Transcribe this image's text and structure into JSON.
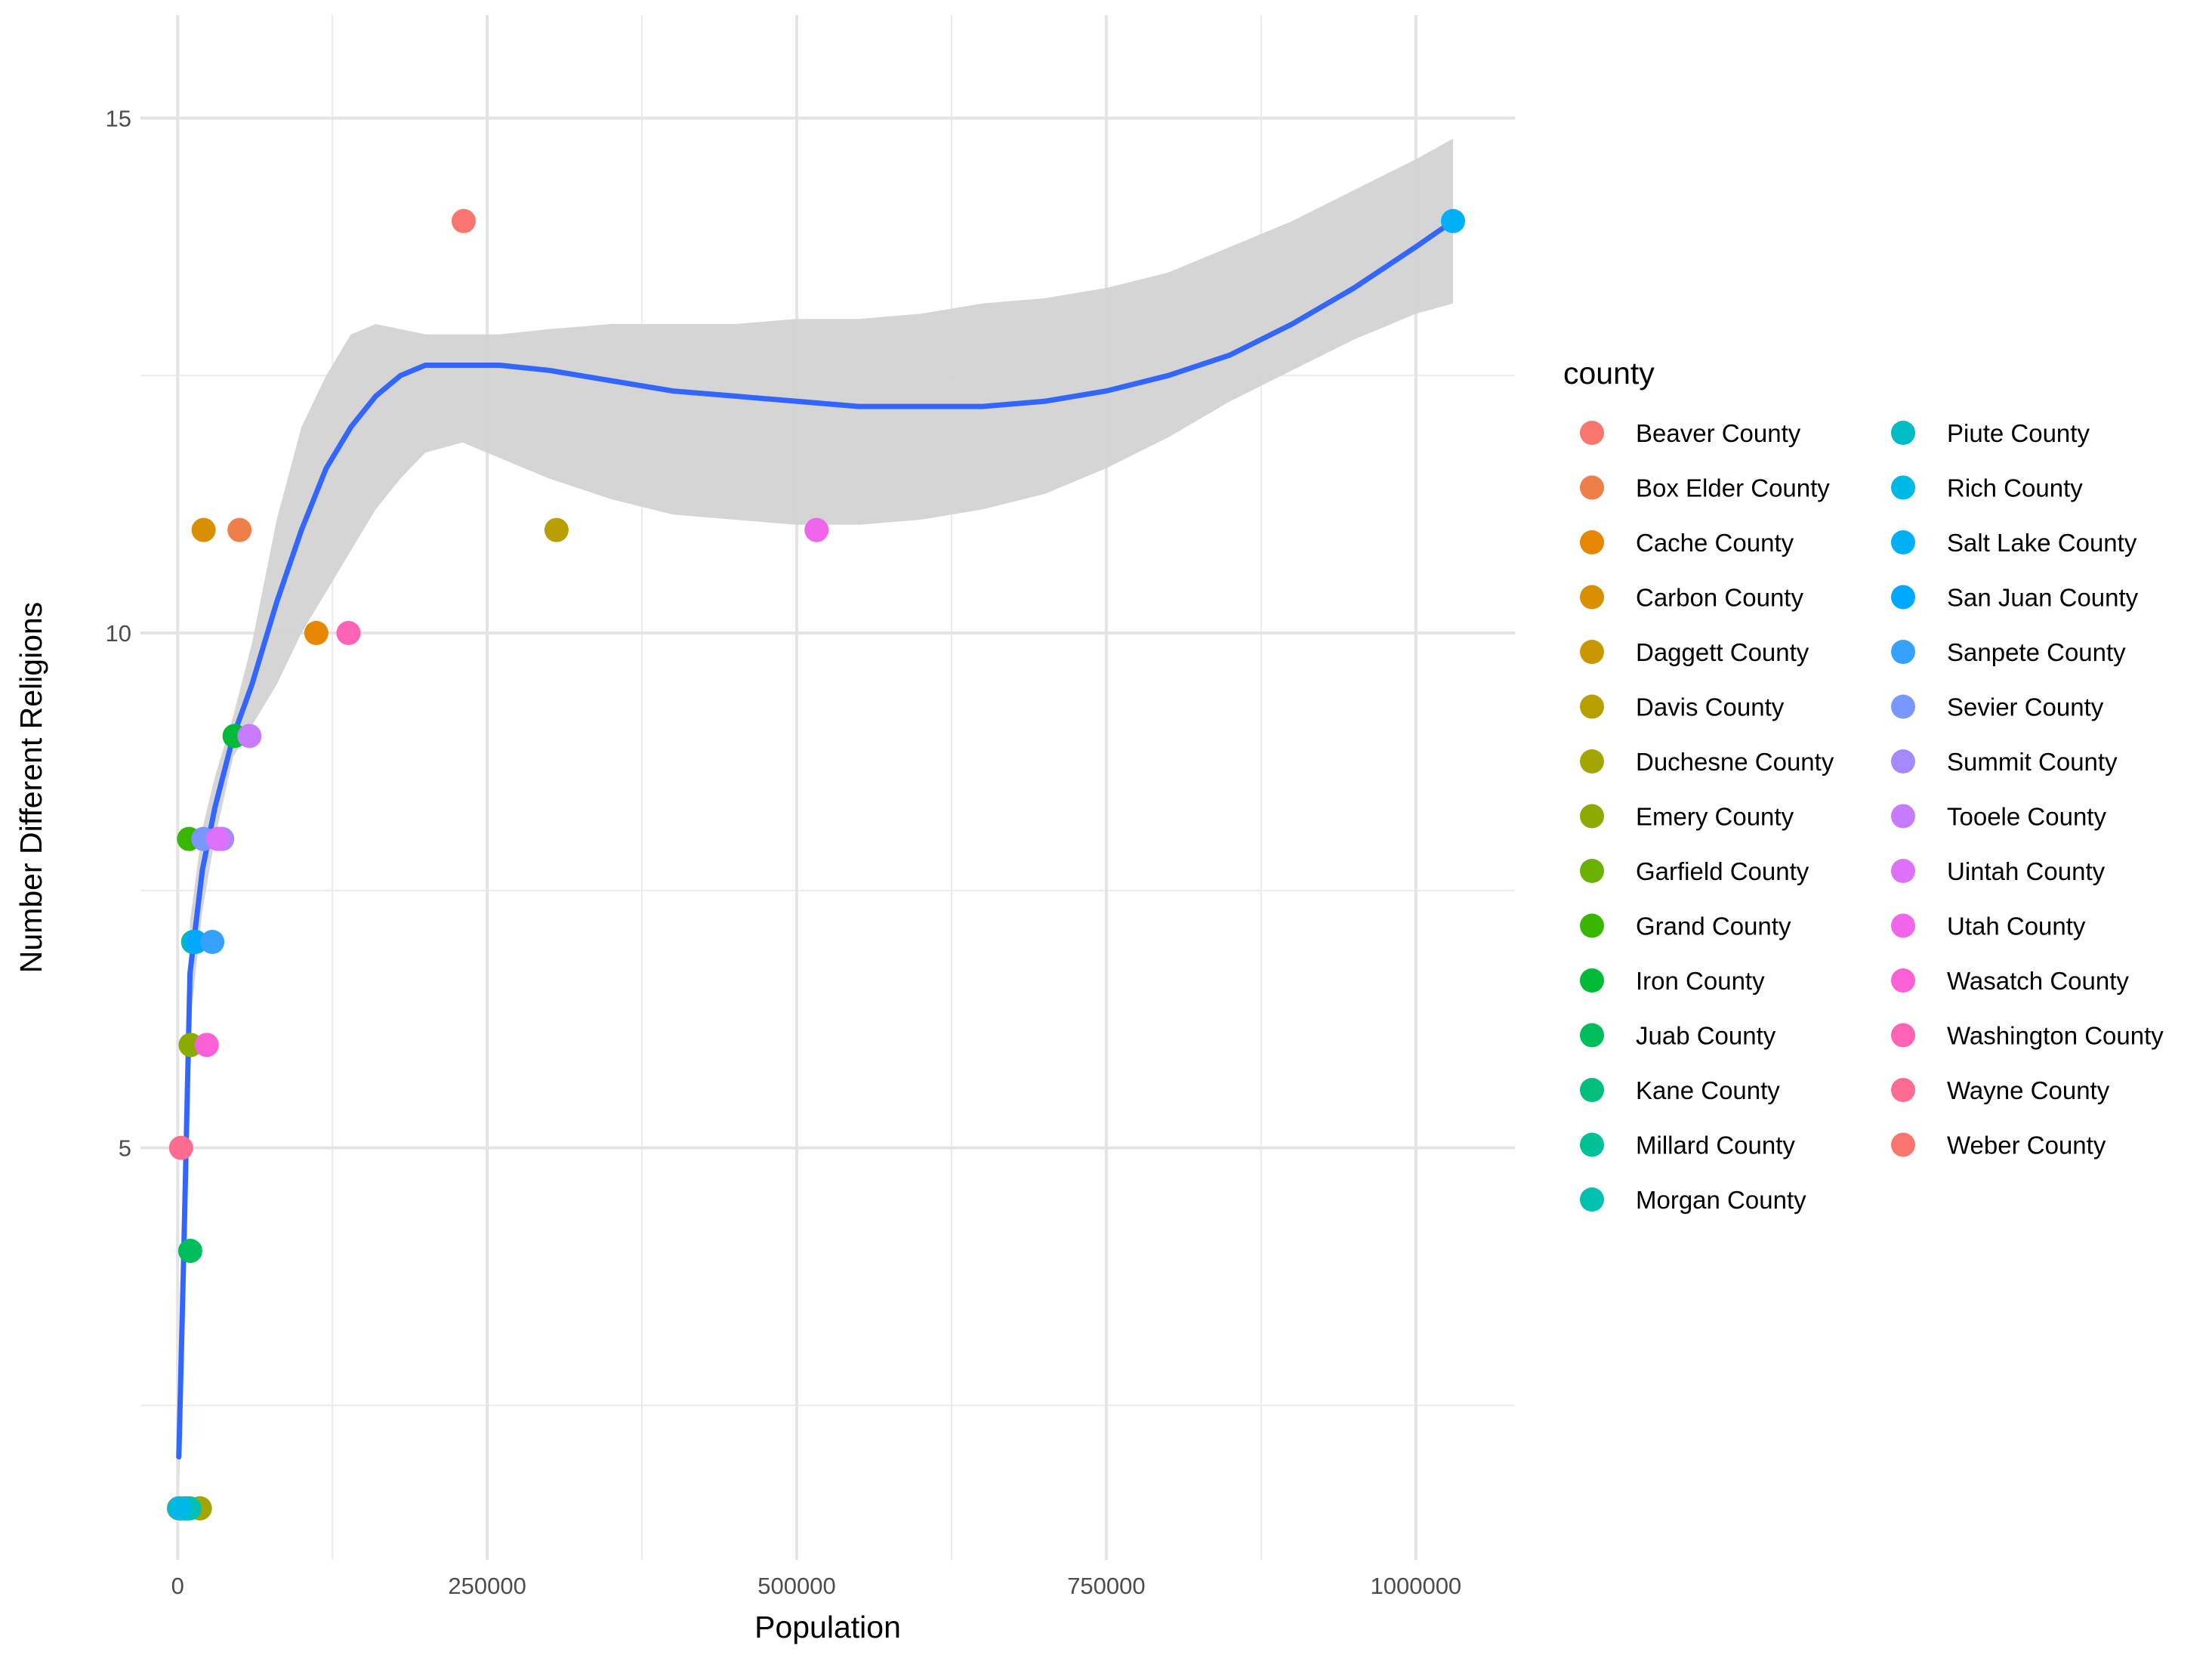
{
  "chart_data": {
    "type": "scatter",
    "title": "",
    "xlabel": "Population",
    "ylabel": "Number Different Religions",
    "xlim": [
      -30000,
      1080000
    ],
    "ylim": [
      1,
      16
    ],
    "xticks": [
      0,
      250000,
      500000,
      750000,
      1000000
    ],
    "xtick_labels": [
      "0",
      "250000",
      "500000",
      "750000",
      "1000000"
    ],
    "yticks": [
      5,
      10,
      15
    ],
    "ytick_labels": [
      "5",
      "10",
      "15"
    ],
    "grid": true,
    "legend": {
      "title": "county",
      "position": "right",
      "columns": 2
    },
    "series": [
      {
        "name": "Beaver County",
        "color": "#F8766D",
        "points": [
          [
            6600,
            1.5
          ]
        ]
      },
      {
        "name": "Box Elder County",
        "color": "#EF7F49",
        "points": [
          [
            50000,
            11
          ]
        ]
      },
      {
        "name": "Cache County",
        "color": "#E58700",
        "points": [
          [
            112000,
            10
          ]
        ]
      },
      {
        "name": "Carbon County",
        "color": "#D89000",
        "points": [
          [
            21000,
            11
          ]
        ]
      },
      {
        "name": "Daggett County",
        "color": "#C99800",
        "points": [
          [
            1000,
            1.5
          ]
        ]
      },
      {
        "name": "Davis County",
        "color": "#B79F00",
        "points": [
          [
            306000,
            11
          ]
        ]
      },
      {
        "name": "Duchesne County",
        "color": "#A3A500",
        "points": [
          [
            18000,
            1.5
          ]
        ]
      },
      {
        "name": "Emery County",
        "color": "#8BAB00",
        "points": [
          [
            10500,
            6
          ]
        ]
      },
      {
        "name": "Garfield County",
        "color": "#6BB100",
        "points": [
          [
            5100,
            1.5
          ]
        ]
      },
      {
        "name": "Grand County",
        "color": "#39B600",
        "points": [
          [
            9200,
            8
          ]
        ]
      },
      {
        "name": "Iron County",
        "color": "#00BA38",
        "points": [
          [
            46000,
            9
          ]
        ]
      },
      {
        "name": "Juab County",
        "color": "#00BD5C",
        "points": [
          [
            10200,
            4
          ]
        ]
      },
      {
        "name": "Kane County",
        "color": "#00BF7D",
        "points": [
          [
            7100,
            1.5
          ]
        ]
      },
      {
        "name": "Millard County",
        "color": "#00C097",
        "points": [
          [
            12500,
            7
          ]
        ]
      },
      {
        "name": "Morgan County",
        "color": "#00C0AF",
        "points": [
          [
            9500,
            1.5
          ]
        ]
      },
      {
        "name": "Piute County",
        "color": "#00BCC4",
        "points": [
          [
            1500,
            1.5
          ]
        ]
      },
      {
        "name": "Rich County",
        "color": "#00B8E5",
        "points": [
          [
            2300,
            1.5
          ]
        ]
      },
      {
        "name": "Salt Lake County",
        "color": "#00B0F6",
        "points": [
          [
            1030000,
            14
          ]
        ]
      },
      {
        "name": "San Juan County",
        "color": "#00A9FF",
        "points": [
          [
            14500,
            7
          ]
        ]
      },
      {
        "name": "Sanpete County",
        "color": "#35A2FF",
        "points": [
          [
            28000,
            7
          ]
        ]
      },
      {
        "name": "Sevier County",
        "color": "#7997FF",
        "points": [
          [
            20800,
            8
          ]
        ]
      },
      {
        "name": "Summit County",
        "color": "#A58AFF",
        "points": [
          [
            36000,
            8
          ]
        ]
      },
      {
        "name": "Tooele County",
        "color": "#C77CFF",
        "points": [
          [
            58000,
            9
          ]
        ]
      },
      {
        "name": "Uintah County",
        "color": "#DE71F9",
        "points": [
          [
            32600,
            8
          ]
        ]
      },
      {
        "name": "Utah County",
        "color": "#F066EA",
        "points": [
          [
            516000,
            11
          ]
        ]
      },
      {
        "name": "Wasatch County",
        "color": "#FB61D7",
        "points": [
          [
            23500,
            6
          ]
        ]
      },
      {
        "name": "Washington County",
        "color": "#FF63B6",
        "points": [
          [
            138000,
            10
          ]
        ]
      },
      {
        "name": "Wayne County",
        "color": "#FF6C92",
        "points": [
          [
            2800,
            5
          ]
        ]
      },
      {
        "name": "Weber County",
        "color": "#F8766D",
        "points": [
          [
            231000,
            14
          ]
        ]
      }
    ],
    "smooth": {
      "color": "#3366FF",
      "band_color": "#D3D3D3",
      "x": [
        1000,
        5000,
        10000,
        20000,
        30000,
        45000,
        60000,
        80000,
        100000,
        120000,
        140000,
        160000,
        180000,
        200000,
        230000,
        260000,
        300000,
        350000,
        400000,
        450000,
        500000,
        550000,
        600000,
        650000,
        700000,
        750000,
        800000,
        850000,
        900000,
        950000,
        1000000,
        1030000
      ],
      "y": [
        2.0,
        4.0,
        6.7,
        7.7,
        8.3,
        9.0,
        9.5,
        10.3,
        11.0,
        11.6,
        12.0,
        12.3,
        12.5,
        12.6,
        12.6,
        12.6,
        12.55,
        12.45,
        12.35,
        12.3,
        12.25,
        12.2,
        12.2,
        12.2,
        12.25,
        12.35,
        12.5,
        12.7,
        13.0,
        13.35,
        13.75,
        14.0
      ],
      "lower": [
        1.6,
        3.4,
        6.2,
        7.3,
        8.0,
        8.8,
        9.1,
        9.5,
        10.0,
        10.4,
        10.8,
        11.2,
        11.5,
        11.75,
        11.85,
        11.7,
        11.5,
        11.3,
        11.15,
        11.1,
        11.05,
        11.05,
        11.1,
        11.2,
        11.35,
        11.6,
        11.9,
        12.25,
        12.55,
        12.85,
        13.1,
        13.2
      ],
      "upper": [
        2.4,
        4.6,
        7.2,
        8.1,
        8.6,
        9.2,
        9.9,
        11.1,
        12.0,
        12.5,
        12.9,
        13.0,
        12.95,
        12.9,
        12.9,
        12.9,
        12.95,
        13.0,
        13.0,
        13.0,
        13.05,
        13.05,
        13.1,
        13.2,
        13.25,
        13.35,
        13.5,
        13.75,
        14.0,
        14.3,
        14.6,
        14.8
      ]
    }
  }
}
